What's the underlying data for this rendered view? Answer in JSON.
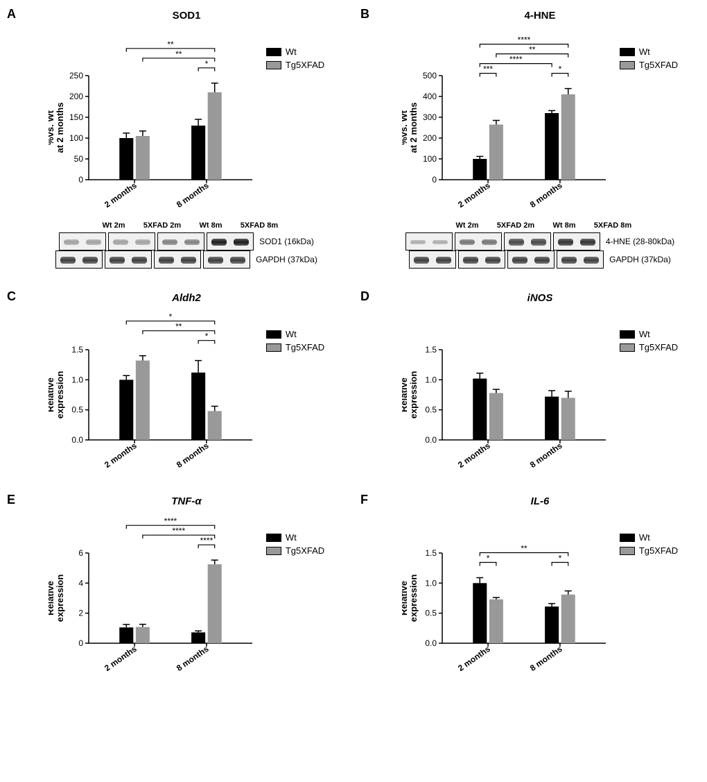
{
  "colors": {
    "wt": "#000000",
    "tg": "#999999",
    "bg": "#ffffff",
    "axis": "#000000"
  },
  "legend": {
    "wt": "Wt",
    "tg": "Tg5XFAD"
  },
  "xcats": [
    "2 months",
    "8 months"
  ],
  "panelA": {
    "letter": "A",
    "title": "SOD1",
    "ylabel": "%vs. Wt\nat 2 months",
    "ymax": 250,
    "ytick": 50,
    "bars": {
      "wt": [
        100,
        130
      ],
      "tg": [
        105,
        210
      ]
    },
    "err": {
      "wt": [
        12,
        15
      ],
      "tg": [
        12,
        22
      ]
    },
    "sig": [
      {
        "from": 0,
        "to": 3,
        "label": "**",
        "level": 3
      },
      {
        "from": 1,
        "to": 3,
        "label": "**",
        "level": 2
      },
      {
        "from": 2,
        "to": 3,
        "label": "*",
        "level": 1
      }
    ],
    "blot": {
      "lanes": [
        "Wt 2m",
        "5XFAD 2m",
        "Wt 8m",
        "5XFAD 8m"
      ],
      "rows": [
        {
          "label": "SOD1 (16kDa)",
          "intensity": [
            0.35,
            0.35,
            0.5,
            0.95
          ]
        },
        {
          "label": "GAPDH (37kDa)",
          "intensity": [
            0.8,
            0.8,
            0.8,
            0.8
          ]
        }
      ]
    }
  },
  "panelB": {
    "letter": "B",
    "title": "4-HNE",
    "ylabel": "%vs. Wt\nat 2 months",
    "ymax": 500,
    "ytick": 100,
    "bars": {
      "wt": [
        100,
        320
      ],
      "tg": [
        265,
        410
      ]
    },
    "err": {
      "wt": [
        12,
        12
      ],
      "tg": [
        20,
        28
      ]
    },
    "sig": [
      {
        "from": 0,
        "to": 3,
        "label": "****",
        "level": 4
      },
      {
        "from": 1,
        "to": 3,
        "label": "**",
        "level": 3
      },
      {
        "from": 0,
        "to": 2,
        "label": "****",
        "level": 2
      },
      {
        "from": 0,
        "to": 1,
        "label": "***",
        "level": 1
      },
      {
        "from": 2,
        "to": 3,
        "label": "*",
        "level": 1
      }
    ],
    "blot": {
      "lanes": [
        "Wt 2m",
        "5XFAD 2m",
        "Wt 8m",
        "5XFAD 8m"
      ],
      "rows": [
        {
          "label": "4-HNE (28-80kDa)",
          "intensity": [
            0.3,
            0.55,
            0.75,
            0.85
          ]
        },
        {
          "label": "GAPDH (37kDa)",
          "intensity": [
            0.8,
            0.8,
            0.8,
            0.8
          ]
        }
      ]
    }
  },
  "panelC": {
    "letter": "C",
    "title": "Aldh2",
    "italic": true,
    "ylabel": "Relative\nexpression",
    "ymax": 1.5,
    "ytick": 0.5,
    "bars": {
      "wt": [
        1.0,
        1.12
      ],
      "tg": [
        1.32,
        0.48
      ]
    },
    "err": {
      "wt": [
        0.07,
        0.2
      ],
      "tg": [
        0.08,
        0.08
      ]
    },
    "sig": [
      {
        "from": 0,
        "to": 3,
        "label": "*",
        "level": 3
      },
      {
        "from": 1,
        "to": 3,
        "label": "**",
        "level": 2
      },
      {
        "from": 2,
        "to": 3,
        "label": "*",
        "level": 1
      }
    ]
  },
  "panelD": {
    "letter": "D",
    "title": "iNOS",
    "italic": true,
    "ylabel": "Relative\nexpression",
    "ymax": 1.5,
    "ytick": 0.5,
    "bars": {
      "wt": [
        1.02,
        0.72
      ],
      "tg": [
        0.78,
        0.7
      ]
    },
    "err": {
      "wt": [
        0.09,
        0.1
      ],
      "tg": [
        0.06,
        0.11
      ]
    },
    "sig": []
  },
  "panelE": {
    "letter": "E",
    "title": "TNF-α",
    "italic": true,
    "ylabel": "Relative\nexpression",
    "ymax": 6,
    "ytick": 2,
    "bars": {
      "wt": [
        1.05,
        0.72
      ],
      "tg": [
        1.08,
        5.25
      ]
    },
    "err": {
      "wt": [
        0.2,
        0.1
      ],
      "tg": [
        0.18,
        0.28
      ]
    },
    "sig": [
      {
        "from": 0,
        "to": 3,
        "label": "****",
        "level": 3
      },
      {
        "from": 1,
        "to": 3,
        "label": "****",
        "level": 2
      },
      {
        "from": 2,
        "to": 3,
        "label": "****",
        "level": 1
      }
    ]
  },
  "panelF": {
    "letter": "F",
    "title": "IL-6",
    "italic": true,
    "ylabel": "Relative\nexpression",
    "ymax": 1.5,
    "ytick": 0.5,
    "bars": {
      "wt": [
        1.0,
        0.61
      ],
      "tg": [
        0.73,
        0.81
      ]
    },
    "err": {
      "wt": [
        0.09,
        0.05
      ],
      "tg": [
        0.03,
        0.06
      ]
    },
    "sig": [
      {
        "from": 0,
        "to": 3,
        "label": "**",
        "level": 2
      },
      {
        "from": 0,
        "to": 1,
        "label": "*",
        "level": 1
      },
      {
        "from": 2,
        "to": 3,
        "label": "*",
        "level": 1
      }
    ]
  }
}
